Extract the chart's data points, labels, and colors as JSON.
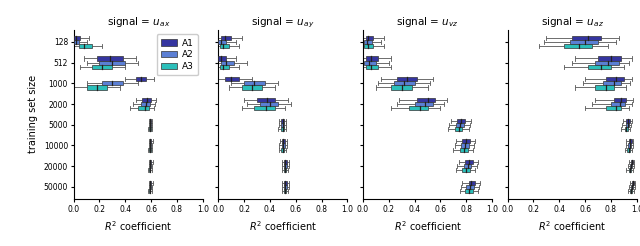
{
  "titles": [
    "signal = $u_{ax}$",
    "signal = $u_{ay}$",
    "signal = $u_{vz}$",
    "signal = $u_{az}$"
  ],
  "ylabel": "training set size",
  "xlabel": "$R^2$ coefficient",
  "ytick_labels": [
    "128",
    "512",
    "1000",
    "2000",
    "5000",
    "10000",
    "20000",
    "50000"
  ],
  "xlim": [
    0.0,
    1.0
  ],
  "xticks": [
    0.0,
    0.2,
    0.4,
    0.6,
    0.8,
    1.0
  ],
  "colors": {
    "A1": "#3535a0",
    "A2": "#5b7fd4",
    "A3": "#2bbfba"
  },
  "subplot_data": [
    {
      "title": "signal = $u_{ax}$",
      "A1": {
        "medians": [
          0.02,
          0.28,
          0.52,
          0.57,
          0.595,
          0.595,
          0.595,
          0.595
        ],
        "q1": [
          0.0,
          0.18,
          0.48,
          0.53,
          0.59,
          0.59,
          0.59,
          0.59
        ],
        "q3": [
          0.05,
          0.38,
          0.56,
          0.6,
          0.6,
          0.6,
          0.6,
          0.6
        ],
        "whislo": [
          0.0,
          0.08,
          0.4,
          0.48,
          0.582,
          0.582,
          0.582,
          0.582
        ],
        "whishi": [
          0.12,
          0.48,
          0.62,
          0.64,
          0.61,
          0.612,
          0.612,
          0.612
        ]
      },
      "A2": {
        "medians": [
          0.02,
          0.3,
          0.3,
          0.56,
          0.593,
          0.593,
          0.593,
          0.593
        ],
        "q1": [
          0.0,
          0.2,
          0.22,
          0.52,
          0.588,
          0.588,
          0.588,
          0.588
        ],
        "q3": [
          0.04,
          0.4,
          0.38,
          0.59,
          0.598,
          0.598,
          0.598,
          0.598
        ],
        "whislo": [
          0.0,
          0.1,
          0.1,
          0.46,
          0.58,
          0.58,
          0.58,
          0.58
        ],
        "whishi": [
          0.1,
          0.5,
          0.5,
          0.63,
          0.607,
          0.608,
          0.608,
          0.608
        ]
      },
      "A3": {
        "medians": [
          0.08,
          0.22,
          0.18,
          0.55,
          0.592,
          0.592,
          0.59,
          0.59
        ],
        "q1": [
          0.04,
          0.14,
          0.1,
          0.5,
          0.585,
          0.585,
          0.585,
          0.585
        ],
        "q3": [
          0.14,
          0.3,
          0.26,
          0.58,
          0.597,
          0.597,
          0.595,
          0.595
        ],
        "whislo": [
          0.0,
          0.05,
          0.0,
          0.44,
          0.577,
          0.577,
          0.576,
          0.576
        ],
        "whishi": [
          0.22,
          0.4,
          0.36,
          0.62,
          0.606,
          0.607,
          0.605,
          0.605
        ]
      }
    },
    {
      "title": "signal = $u_{ay}$",
      "A1": {
        "medians": [
          0.05,
          0.02,
          0.1,
          0.38,
          0.5,
          0.5,
          0.52,
          0.52
        ],
        "q1": [
          0.02,
          0.0,
          0.05,
          0.3,
          0.488,
          0.49,
          0.51,
          0.51
        ],
        "q3": [
          0.1,
          0.06,
          0.16,
          0.44,
          0.512,
          0.515,
          0.53,
          0.53
        ],
        "whislo": [
          0.0,
          0.0,
          0.0,
          0.2,
          0.47,
          0.475,
          0.494,
          0.494
        ],
        "whishi": [
          0.18,
          0.14,
          0.26,
          0.54,
          0.528,
          0.534,
          0.548,
          0.548
        ]
      },
      "A2": {
        "medians": [
          0.02,
          0.06,
          0.28,
          0.4,
          0.5,
          0.5,
          0.52,
          0.52
        ],
        "q1": [
          0.0,
          0.02,
          0.2,
          0.32,
          0.488,
          0.49,
          0.51,
          0.51
        ],
        "q3": [
          0.06,
          0.12,
          0.36,
          0.46,
          0.512,
          0.515,
          0.53,
          0.53
        ],
        "whislo": [
          0.0,
          0.0,
          0.1,
          0.22,
          0.47,
          0.472,
          0.494,
          0.494
        ],
        "whishi": [
          0.14,
          0.22,
          0.46,
          0.56,
          0.528,
          0.532,
          0.548,
          0.548
        ]
      },
      "A3": {
        "medians": [
          0.04,
          0.04,
          0.26,
          0.37,
          0.498,
          0.498,
          0.515,
          0.515
        ],
        "q1": [
          0.01,
          0.01,
          0.18,
          0.28,
          0.484,
          0.485,
          0.505,
          0.505
        ],
        "q3": [
          0.08,
          0.08,
          0.34,
          0.44,
          0.51,
          0.512,
          0.525,
          0.525
        ],
        "whislo": [
          0.0,
          0.0,
          0.08,
          0.18,
          0.466,
          0.468,
          0.49,
          0.49
        ],
        "whishi": [
          0.16,
          0.16,
          0.44,
          0.52,
          0.525,
          0.528,
          0.54,
          0.54
        ]
      }
    },
    {
      "title": "signal = $u_{vz}$",
      "A1": {
        "medians": [
          0.04,
          0.06,
          0.34,
          0.5,
          0.76,
          0.8,
          0.82,
          0.84
        ],
        "q1": [
          0.02,
          0.02,
          0.26,
          0.42,
          0.73,
          0.77,
          0.79,
          0.82
        ],
        "q3": [
          0.08,
          0.12,
          0.42,
          0.56,
          0.79,
          0.83,
          0.85,
          0.87
        ],
        "whislo": [
          0.0,
          0.0,
          0.14,
          0.28,
          0.68,
          0.72,
          0.74,
          0.77
        ],
        "whishi": [
          0.16,
          0.22,
          0.54,
          0.65,
          0.84,
          0.87,
          0.89,
          0.91
        ]
      },
      "A2": {
        "medians": [
          0.03,
          0.05,
          0.32,
          0.48,
          0.75,
          0.79,
          0.81,
          0.83
        ],
        "q1": [
          0.01,
          0.01,
          0.24,
          0.4,
          0.72,
          0.76,
          0.78,
          0.8
        ],
        "q3": [
          0.07,
          0.1,
          0.4,
          0.54,
          0.78,
          0.82,
          0.84,
          0.86
        ],
        "whislo": [
          0.0,
          0.0,
          0.12,
          0.26,
          0.67,
          0.71,
          0.73,
          0.76
        ],
        "whishi": [
          0.14,
          0.2,
          0.52,
          0.63,
          0.83,
          0.86,
          0.88,
          0.9
        ]
      },
      "A3": {
        "medians": [
          0.04,
          0.06,
          0.3,
          0.44,
          0.74,
          0.78,
          0.8,
          0.82
        ],
        "q1": [
          0.01,
          0.02,
          0.22,
          0.36,
          0.71,
          0.75,
          0.77,
          0.79
        ],
        "q3": [
          0.08,
          0.12,
          0.38,
          0.5,
          0.77,
          0.81,
          0.83,
          0.85
        ],
        "whislo": [
          0.0,
          0.0,
          0.1,
          0.22,
          0.66,
          0.7,
          0.72,
          0.75
        ],
        "whishi": [
          0.16,
          0.22,
          0.5,
          0.6,
          0.82,
          0.85,
          0.87,
          0.89
        ]
      }
    },
    {
      "title": "signal = $u_{az}$",
      "A1": {
        "medians": [
          0.62,
          0.8,
          0.84,
          0.88,
          0.935,
          0.95,
          0.96,
          0.97
        ],
        "q1": [
          0.5,
          0.7,
          0.76,
          0.82,
          0.92,
          0.94,
          0.952,
          0.962
        ],
        "q3": [
          0.72,
          0.88,
          0.9,
          0.92,
          0.948,
          0.96,
          0.968,
          0.978
        ],
        "whislo": [
          0.3,
          0.52,
          0.6,
          0.68,
          0.89,
          0.92,
          0.936,
          0.946
        ],
        "whishi": [
          0.86,
          0.96,
          0.96,
          0.97,
          0.962,
          0.972,
          0.98,
          0.988
        ]
      },
      "A2": {
        "medians": [
          0.6,
          0.78,
          0.82,
          0.87,
          0.93,
          0.945,
          0.955,
          0.965
        ],
        "q1": [
          0.48,
          0.68,
          0.74,
          0.8,
          0.915,
          0.935,
          0.947,
          0.957
        ],
        "q3": [
          0.7,
          0.86,
          0.88,
          0.91,
          0.943,
          0.955,
          0.963,
          0.973
        ],
        "whislo": [
          0.28,
          0.5,
          0.58,
          0.65,
          0.884,
          0.914,
          0.93,
          0.94
        ],
        "whishi": [
          0.84,
          0.94,
          0.95,
          0.96,
          0.957,
          0.967,
          0.975,
          0.983
        ]
      },
      "A3": {
        "medians": [
          0.55,
          0.72,
          0.76,
          0.84,
          0.92,
          0.938,
          0.948,
          0.958
        ],
        "q1": [
          0.44,
          0.62,
          0.68,
          0.76,
          0.905,
          0.925,
          0.937,
          0.948
        ],
        "q3": [
          0.65,
          0.8,
          0.82,
          0.88,
          0.933,
          0.948,
          0.956,
          0.966
        ],
        "whislo": [
          0.24,
          0.44,
          0.52,
          0.6,
          0.874,
          0.906,
          0.92,
          0.93
        ],
        "whishi": [
          0.78,
          0.9,
          0.92,
          0.94,
          0.947,
          0.96,
          0.968,
          0.976
        ]
      }
    }
  ]
}
